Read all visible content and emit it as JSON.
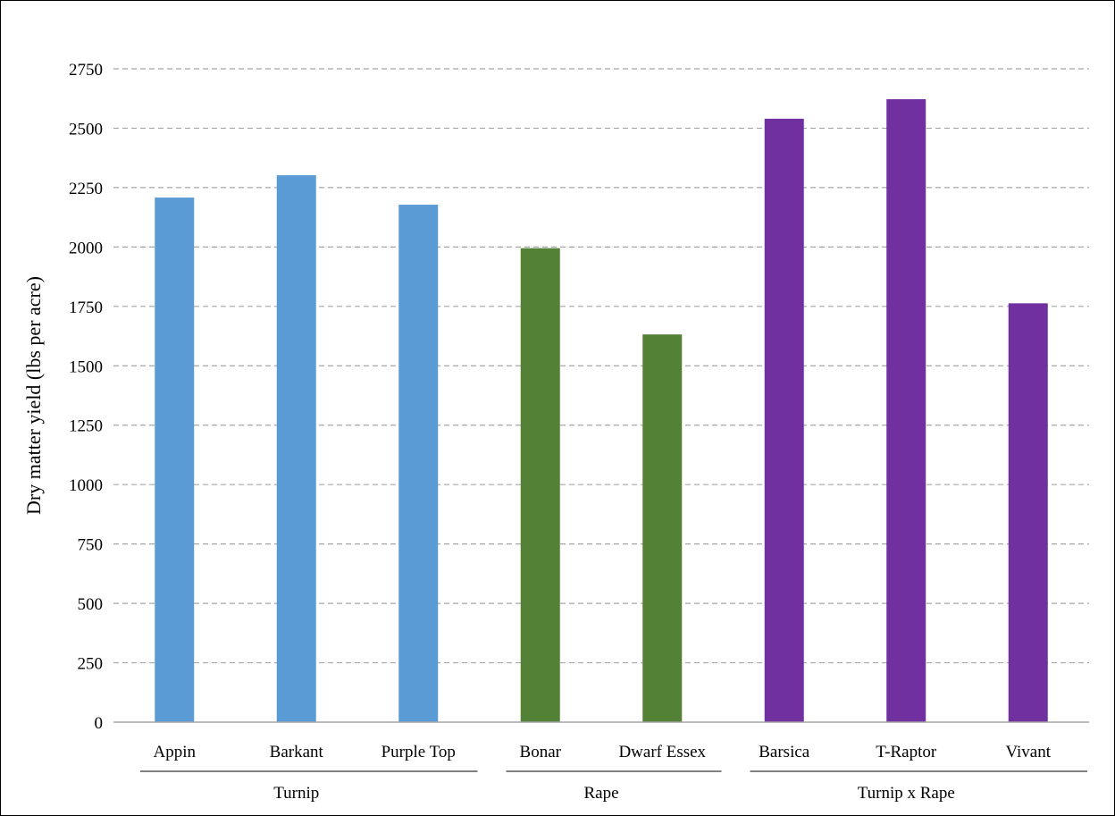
{
  "chart_data": {
    "type": "bar",
    "title": "",
    "xlabel": "",
    "ylabel": "Dry matter yield (lbs per acre)",
    "ylim": [
      0,
      2750
    ],
    "yticks": [
      0,
      250,
      500,
      750,
      1000,
      1250,
      1500,
      1750,
      2000,
      2250,
      2500,
      2750
    ],
    "grid": true,
    "legend": "none",
    "categories": [
      "Appin",
      "Barkant",
      "Purple Top",
      "Bonar",
      "Dwarf Essex",
      "Barsica",
      "T-Raptor",
      "Vivant"
    ],
    "values": [
      2208,
      2302,
      2178,
      1995,
      1632,
      2540,
      2622,
      1763
    ],
    "groups": [
      {
        "name": "Turnip",
        "categories": [
          "Appin",
          "Barkant",
          "Purple Top"
        ],
        "color": "#5b9bd5"
      },
      {
        "name": "Rape",
        "categories": [
          "Bonar",
          "Dwarf Essex"
        ],
        "color": "#538135"
      },
      {
        "name": "Turnip x Rape",
        "categories": [
          "Barsica",
          "T-Raptor",
          "Vivant"
        ],
        "color": "#7030a0"
      }
    ]
  }
}
